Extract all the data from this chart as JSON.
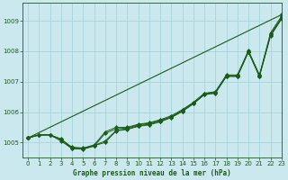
{
  "title": "Graphe pression niveau de la mer (hPa)",
  "background_color": "#cce8ef",
  "grid_color": "#a8d4dc",
  "line_color": "#1a5c1a",
  "xlim": [
    -0.5,
    23
  ],
  "ylim": [
    1004.5,
    1009.6
  ],
  "yticks": [
    1005,
    1006,
    1007,
    1008,
    1009
  ],
  "xticks": [
    0,
    1,
    2,
    3,
    4,
    5,
    6,
    7,
    8,
    9,
    10,
    11,
    12,
    13,
    14,
    15,
    16,
    17,
    18,
    19,
    20,
    21,
    22,
    23
  ],
  "series": [
    [
      1005.15,
      1005.25,
      1005.25,
      1005.1,
      1004.8,
      1004.8,
      1004.9,
      1005.05,
      1005.4,
      1005.45,
      1005.55,
      1005.6,
      1005.7,
      1005.85,
      1006.05,
      1006.3,
      1006.6,
      1006.65,
      1007.2,
      1007.2,
      1008.0,
      1007.2,
      1008.6,
      1009.15
    ],
    [
      1005.15,
      1005.25,
      1005.25,
      1005.1,
      1004.85,
      1004.82,
      1004.92,
      1005.35,
      1005.5,
      1005.5,
      1005.6,
      1005.65,
      1005.75,
      1005.88,
      1006.08,
      1006.32,
      1006.62,
      1006.67,
      1007.22,
      1007.22,
      1008.02,
      1007.22,
      1008.55,
      1009.1
    ],
    [
      1005.15,
      1005.25,
      1005.25,
      1005.05,
      1004.8,
      1004.78,
      1004.88,
      1005.3,
      1005.45,
      1005.48,
      1005.58,
      1005.63,
      1005.73,
      1005.83,
      1006.03,
      1006.28,
      1006.58,
      1006.63,
      1007.18,
      1007.18,
      1007.98,
      1007.18,
      1008.5,
      1009.05
    ],
    [
      1005.15,
      1005.25,
      1005.25,
      1005.12,
      1004.82,
      1004.8,
      1004.9,
      1005.0,
      1005.38,
      1005.43,
      1005.53,
      1005.58,
      1005.68,
      1005.82,
      1006.02,
      1006.27,
      1006.57,
      1006.62,
      1007.17,
      1007.17,
      1007.97,
      1007.17,
      1008.52,
      1009.08
    ]
  ],
  "series_straight": [
    1005.15,
    1009.2
  ]
}
